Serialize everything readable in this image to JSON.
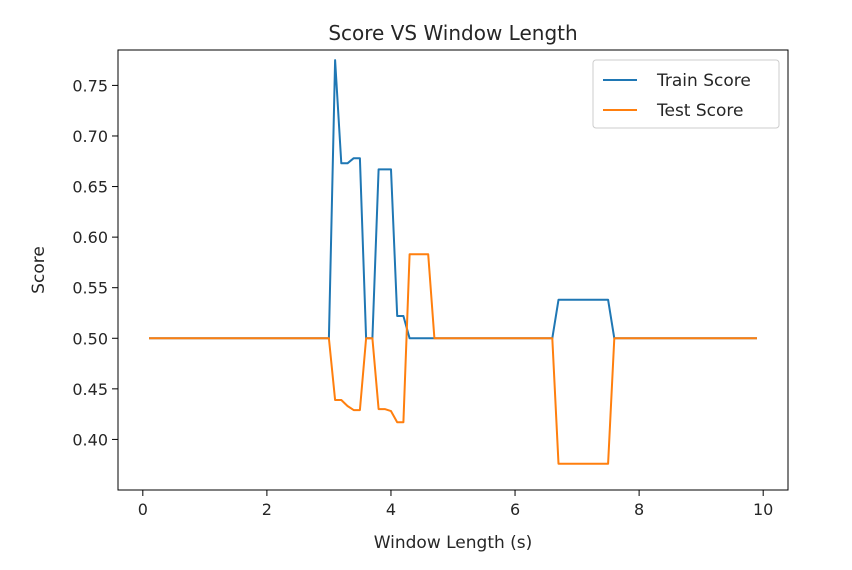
{
  "chart_data": {
    "type": "line",
    "title": "Score VS Window Length",
    "xlabel": "Window Length (s)",
    "ylabel": "Score",
    "xlim": [
      -0.4,
      10.4
    ],
    "ylim": [
      0.35,
      0.785
    ],
    "xticks": [
      0,
      2,
      4,
      6,
      8,
      10
    ],
    "xtick_labels": [
      "0",
      "2",
      "4",
      "6",
      "8",
      "10"
    ],
    "yticks": [
      0.4,
      0.45,
      0.5,
      0.55,
      0.6,
      0.65,
      0.7,
      0.75
    ],
    "ytick_labels": [
      "0.40",
      "0.45",
      "0.50",
      "0.55",
      "0.60",
      "0.65",
      "0.70",
      "0.75"
    ],
    "grid": false,
    "legend_position": "top-right",
    "series": [
      {
        "name": "Train Score",
        "color": "#1f77b4",
        "x": [
          0.1,
          2.5,
          3.0,
          3.1,
          3.2,
          3.3,
          3.4,
          3.5,
          3.6,
          3.7,
          3.8,
          3.9,
          4.0,
          4.1,
          4.2,
          4.3,
          4.4,
          5.0,
          6.0,
          6.6,
          6.7,
          7.0,
          7.5,
          7.6,
          8.0,
          9.0,
          9.9
        ],
        "y": [
          0.5,
          0.5,
          0.5,
          0.775,
          0.673,
          0.673,
          0.678,
          0.678,
          0.5,
          0.5,
          0.667,
          0.667,
          0.667,
          0.522,
          0.522,
          0.5,
          0.5,
          0.5,
          0.5,
          0.5,
          0.538,
          0.538,
          0.538,
          0.5,
          0.5,
          0.5,
          0.5
        ]
      },
      {
        "name": "Test Score",
        "color": "#ff7f0e",
        "x": [
          0.1,
          2.5,
          3.0,
          3.1,
          3.2,
          3.3,
          3.4,
          3.5,
          3.6,
          3.7,
          3.8,
          3.9,
          4.0,
          4.1,
          4.2,
          4.3,
          4.4,
          4.5,
          4.6,
          4.7,
          5.0,
          6.0,
          6.6,
          6.7,
          7.0,
          7.5,
          7.6,
          8.0,
          9.0,
          9.9
        ],
        "y": [
          0.5,
          0.5,
          0.5,
          0.439,
          0.439,
          0.433,
          0.429,
          0.429,
          0.5,
          0.5,
          0.43,
          0.43,
          0.428,
          0.417,
          0.417,
          0.583,
          0.583,
          0.583,
          0.583,
          0.5,
          0.5,
          0.5,
          0.5,
          0.376,
          0.376,
          0.376,
          0.5,
          0.5,
          0.5,
          0.5
        ]
      }
    ]
  }
}
